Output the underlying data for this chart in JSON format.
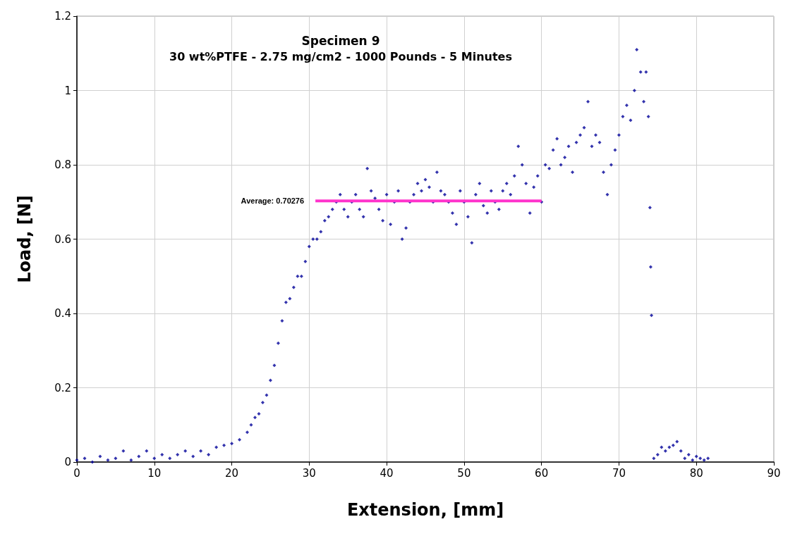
{
  "chart_data": {
    "type": "scatter",
    "title": "Specimen 9",
    "subtitle": "30 wt%PTFE - 2.75 mg/cm2 - 1000 Pounds - 5 Minutes",
    "xlabel": "Extension, [mm]",
    "ylabel": "Load, [N]",
    "xlim": [
      0,
      90
    ],
    "xticks": [
      0,
      10,
      20,
      30,
      40,
      50,
      60,
      70,
      80,
      90
    ],
    "ylim": [
      0,
      1.2
    ],
    "yticks": [
      0,
      0.2,
      0.4,
      0.6,
      0.8,
      1,
      1.2
    ],
    "grid": true,
    "legend": false,
    "series": [
      {
        "color": "#000099",
        "marker": "diamond",
        "x": [
          0,
          1,
          2,
          3,
          4,
          5,
          6,
          7,
          8,
          9,
          10,
          11,
          12,
          13,
          14,
          15,
          16,
          17,
          18,
          19,
          20,
          21,
          22,
          22.5,
          23,
          23.5,
          24,
          24.5,
          25,
          25.5,
          26,
          26.5,
          27,
          27.5,
          28,
          28.5,
          29,
          29.5,
          30,
          30.5,
          31,
          31.5,
          32,
          32.5,
          33,
          33.5,
          34,
          34.5,
          35,
          35.5,
          36,
          36.5,
          37,
          37.5,
          38,
          38.5,
          39,
          39.5,
          40,
          40.5,
          41,
          41.5,
          42,
          42.5,
          43,
          43.5,
          44,
          44.5,
          45,
          45.5,
          46,
          46.5,
          47,
          47.5,
          48,
          48.5,
          49,
          49.5,
          50,
          50.5,
          51,
          51.5,
          52,
          52.5,
          53,
          53.5,
          54,
          54.5,
          55,
          55.5,
          56,
          56.5,
          57,
          57.5,
          58,
          58.5,
          59,
          59.5,
          60,
          60.5,
          61,
          61.5,
          62,
          62.5,
          63,
          63.5,
          64,
          64.5,
          65,
          65.5,
          66,
          66.5,
          67,
          67.5,
          68,
          68.5,
          69,
          69.5,
          70,
          70.5,
          71,
          71.5,
          72,
          72.3,
          72.8,
          73.2,
          73.5,
          73.8,
          74,
          74.1,
          74.2,
          74.5,
          75,
          75.5,
          76,
          76.5,
          77,
          77.5,
          78,
          78.5,
          79,
          79.5,
          80,
          80.5,
          81,
          81.5
        ],
        "values": [
          0.005,
          0.01,
          0,
          0.015,
          0.005,
          0.01,
          0.03,
          0.005,
          0.015,
          0.03,
          0.01,
          0.02,
          0.01,
          0.02,
          0.03,
          0.015,
          0.03,
          0.02,
          0.04,
          0.045,
          0.05,
          0.06,
          0.08,
          0.1,
          0.12,
          0.13,
          0.16,
          0.18,
          0.22,
          0.26,
          0.32,
          0.38,
          0.43,
          0.44,
          0.47,
          0.5,
          0.5,
          0.54,
          0.58,
          0.6,
          0.6,
          0.62,
          0.65,
          0.66,
          0.68,
          0.7,
          0.72,
          0.68,
          0.66,
          0.7,
          0.72,
          0.68,
          0.66,
          0.79,
          0.73,
          0.71,
          0.68,
          0.65,
          0.72,
          0.64,
          0.7,
          0.73,
          0.6,
          0.63,
          0.7,
          0.72,
          0.75,
          0.73,
          0.76,
          0.74,
          0.7,
          0.78,
          0.73,
          0.72,
          0.7,
          0.67,
          0.64,
          0.73,
          0.7,
          0.66,
          0.59,
          0.72,
          0.75,
          0.69,
          0.67,
          0.73,
          0.7,
          0.68,
          0.73,
          0.75,
          0.72,
          0.77,
          0.85,
          0.8,
          0.75,
          0.67,
          0.74,
          0.77,
          0.7,
          0.8,
          0.79,
          0.84,
          0.87,
          0.8,
          0.82,
          0.85,
          0.78,
          0.86,
          0.88,
          0.9,
          0.97,
          0.85,
          0.88,
          0.86,
          0.78,
          0.72,
          0.8,
          0.84,
          0.88,
          0.93,
          0.96,
          0.92,
          1,
          1.11,
          1.05,
          0.97,
          1.05,
          0.93,
          0.685,
          0.525,
          0.395,
          0.01,
          0.02,
          0.04,
          0.03,
          0.04,
          0.045,
          0.055,
          0.03,
          0.01,
          0.02,
          0.005,
          0.015,
          0.01,
          0.005,
          0.01
        ]
      },
      {
        "type": "line",
        "name": "Average: 0.70276",
        "color": "#ff33cc",
        "marker": "none",
        "x": [
          30.8,
          60
        ],
        "values": [
          0.70276,
          0.70276
        ]
      }
    ]
  }
}
